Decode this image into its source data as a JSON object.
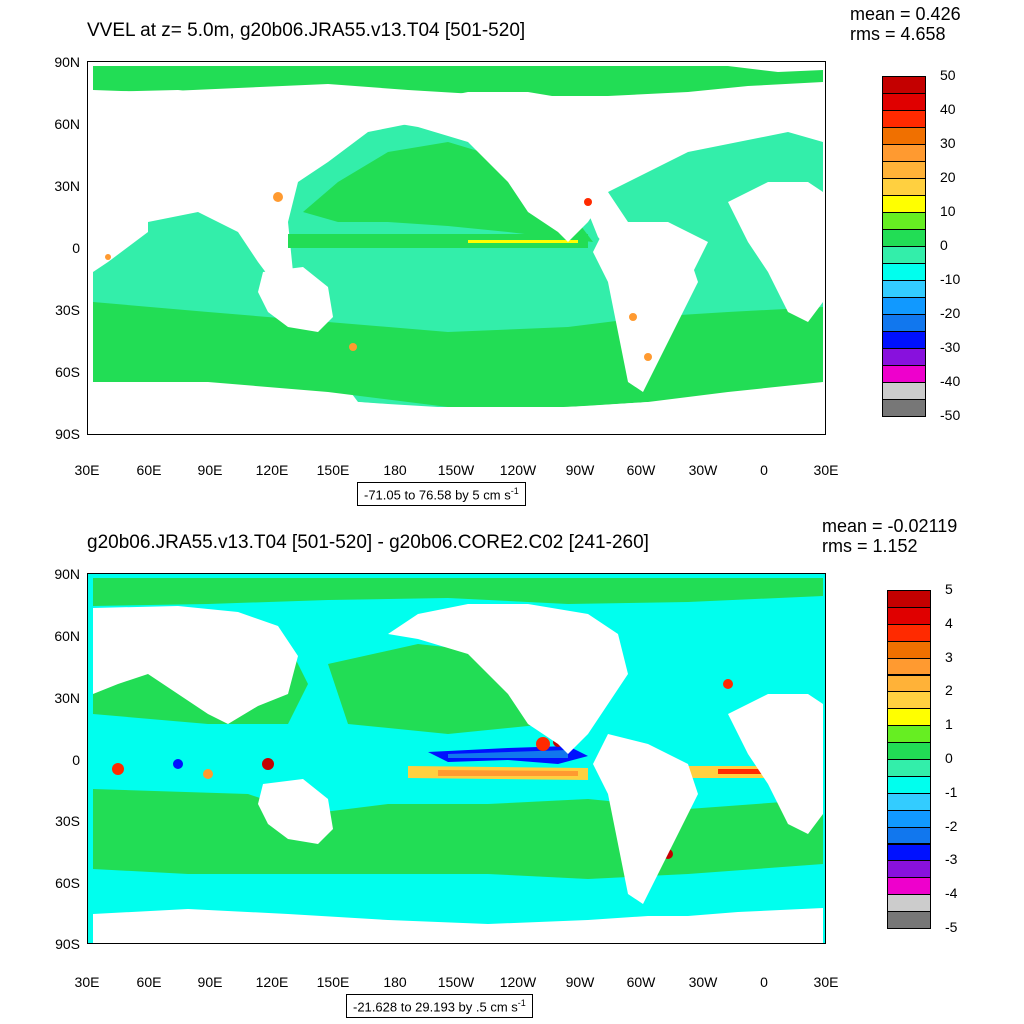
{
  "panels": [
    {
      "title": "VVEL at z=   5.0m, g20b06.JRA55.v13.T04 [501-520]",
      "mean": "mean = 0.426",
      "rms": "rms = 4.658",
      "range": "-71.05 to 76.58 by 5 cm s",
      "range_sup": "-1",
      "lat_labels": [
        "90N",
        "60N",
        "30N",
        "0",
        "30S",
        "60S",
        "90S"
      ],
      "lon_labels": [
        "30E",
        "60E",
        "90E",
        "120E",
        "150E",
        "180",
        "150W",
        "120W",
        "90W",
        "60W",
        "30W",
        "0",
        "30E"
      ],
      "colorbar_labels": [
        "50",
        "40",
        "30",
        "20",
        "10",
        "0",
        "-10",
        "-20",
        "-30",
        "-40",
        "-50"
      ],
      "colorbar_colors": [
        "#c40000",
        "#e00000",
        "#ff2a00",
        "#f07000",
        "#ff9a30",
        "#ffb238",
        "#ffd040",
        "#ffff00",
        "#66ee22",
        "#22dd55",
        "#33eeaa",
        "#00ffee",
        "#33ccff",
        "#1199ff",
        "#1177ee",
        "#0011ff",
        "#8811dd",
        "#ee00cc",
        "#cccccc",
        "#777777"
      ]
    },
    {
      "title": "g20b06.JRA55.v13.T04 [501-520] - g20b06.CORE2.C02 [241-260]",
      "mean": "mean = -0.02119",
      "rms": "rms = 1.152",
      "range": "-21.628 to 29.193 by .5 cm s",
      "range_sup": "-1",
      "lat_labels": [
        "90N",
        "60N",
        "30N",
        "0",
        "30S",
        "60S",
        "90S"
      ],
      "lon_labels": [
        "30E",
        "60E",
        "90E",
        "120E",
        "150E",
        "180",
        "150W",
        "120W",
        "90W",
        "60W",
        "30W",
        "0",
        "30E"
      ],
      "colorbar_labels": [
        "5",
        "4",
        "3",
        "2",
        "1",
        "0",
        "-1",
        "-2",
        "-3",
        "-4",
        "-5"
      ],
      "colorbar_colors": [
        "#c40000",
        "#e00000",
        "#ff2a00",
        "#f07000",
        "#ff9a30",
        "#ffb238",
        "#ffd040",
        "#ffff00",
        "#66ee22",
        "#22dd55",
        "#33eeaa",
        "#00ffee",
        "#33ccff",
        "#1199ff",
        "#1177ee",
        "#0011ff",
        "#8811dd",
        "#ee00cc",
        "#cccccc",
        "#777777"
      ]
    }
  ]
}
